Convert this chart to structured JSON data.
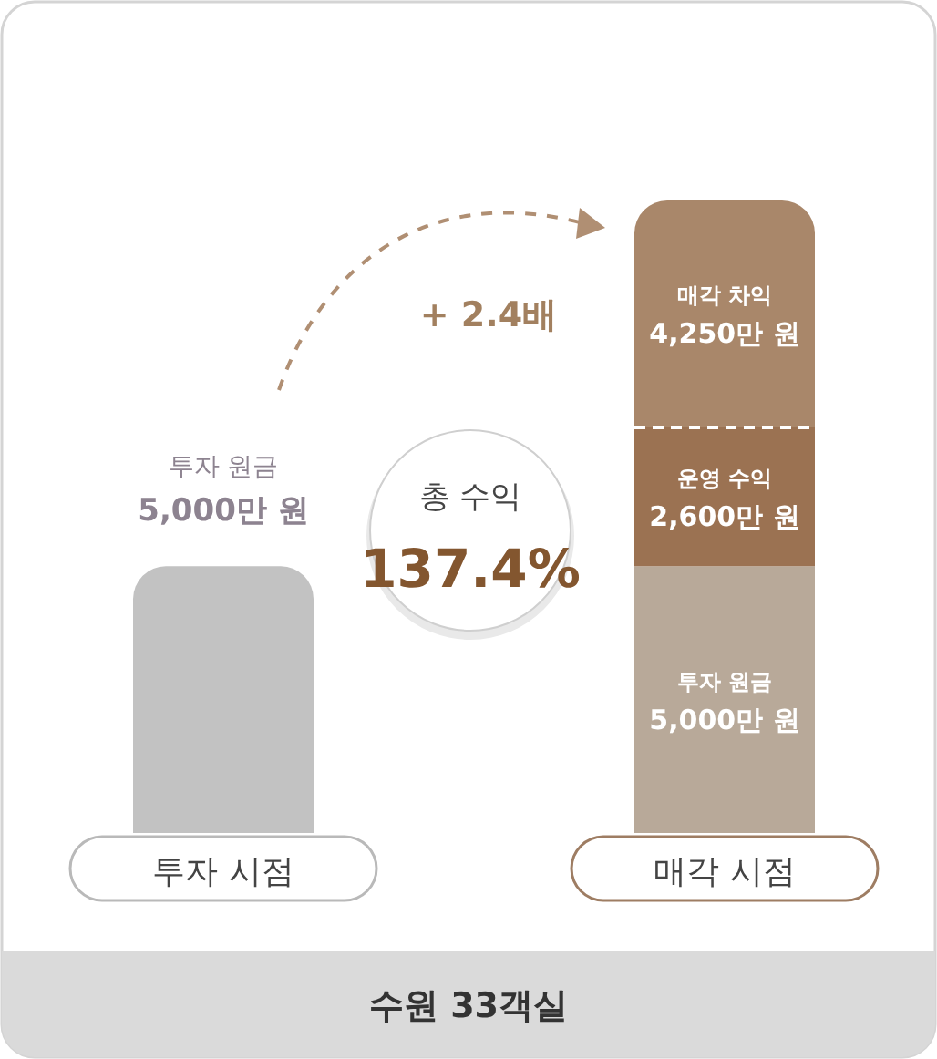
{
  "chart_data": {
    "type": "bar",
    "stacked": true,
    "title": "수원 33객실",
    "categories": [
      "투자 시점",
      "매각 시점"
    ],
    "series": [
      {
        "name": "투자 원금",
        "colors": [
          "#c2c2c2",
          "#b8a999"
        ],
        "values": [
          5000,
          5000
        ],
        "value_labels": [
          "5,000만 원",
          "5,000만 원"
        ]
      },
      {
        "name": "운영 수익",
        "color": "#9b7252",
        "values": [
          null,
          2600
        ],
        "value_labels": [
          null,
          "2,600만 원"
        ]
      },
      {
        "name": "매각 차익",
        "color": "#a9876a",
        "values": [
          null,
          4250
        ],
        "value_labels": [
          null,
          "4,250만 원"
        ]
      }
    ],
    "annotations": [
      "+ 2.4배",
      "총 수익",
      "137.4%"
    ]
  }
}
